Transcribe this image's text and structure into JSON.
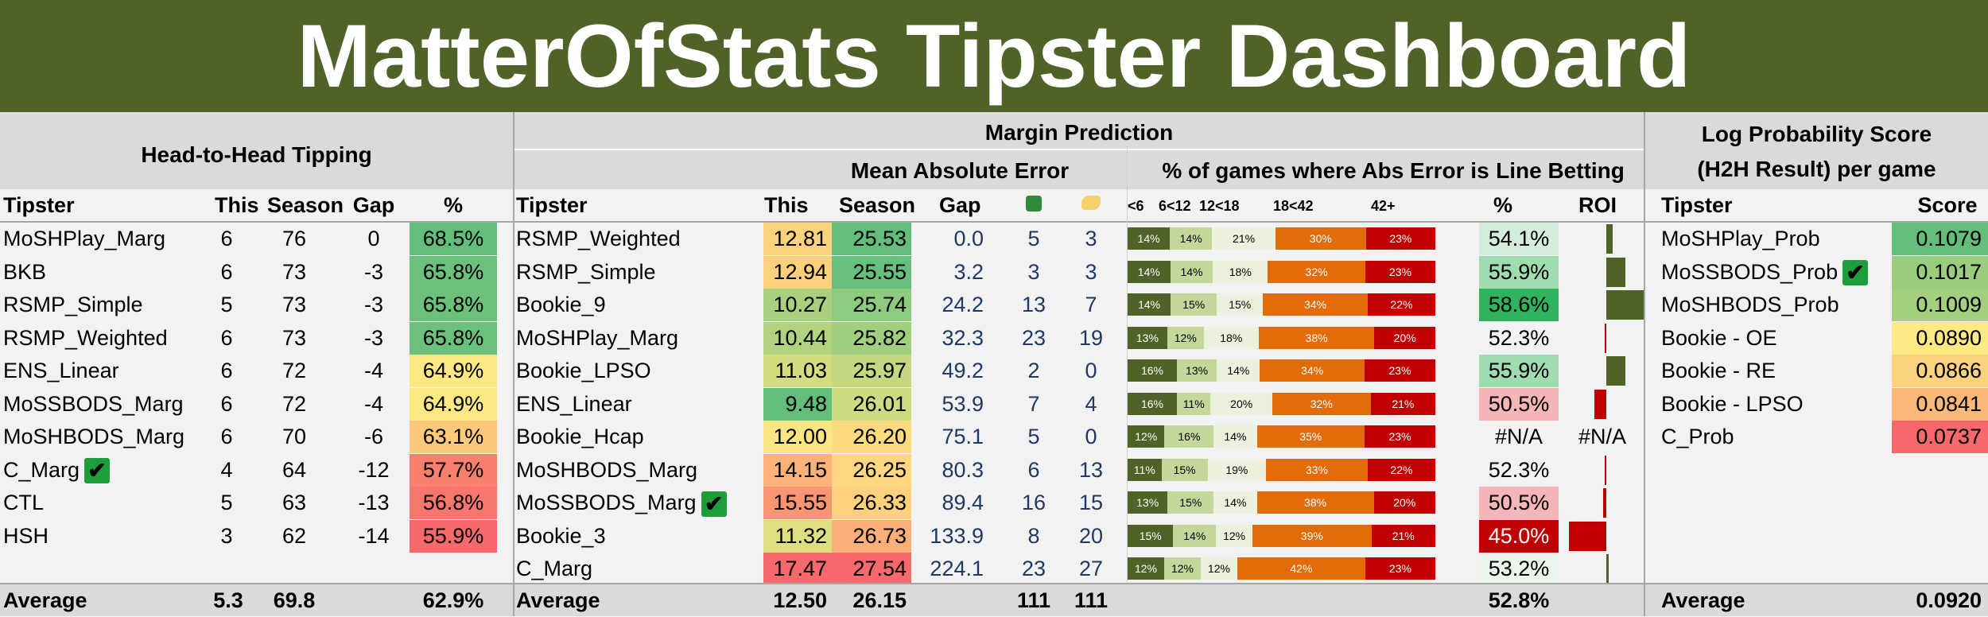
{
  "title": "MatterOfStats Tipster Dashboard",
  "h2h": {
    "section_title": "Head-to-Head Tipping",
    "headers": [
      "Tipster",
      "This",
      "Season",
      "Gap",
      "%"
    ],
    "rows": [
      {
        "name": "MoSHPlay_Marg",
        "this": "6",
        "season": "76",
        "gap": "0",
        "pct": "68.5%",
        "color": "#63be7b",
        "check": false
      },
      {
        "name": "BKB",
        "this": "6",
        "season": "73",
        "gap": "-3",
        "pct": "65.8%",
        "color": "#6bc17c",
        "check": false
      },
      {
        "name": "RSMP_Simple",
        "this": "5",
        "season": "73",
        "gap": "-3",
        "pct": "65.8%",
        "color": "#6bc17c",
        "check": false
      },
      {
        "name": "RSMP_Weighted",
        "this": "6",
        "season": "73",
        "gap": "-3",
        "pct": "65.8%",
        "color": "#6bc17c",
        "check": false
      },
      {
        "name": "ENS_Linear",
        "this": "6",
        "season": "72",
        "gap": "-4",
        "pct": "64.9%",
        "color": "#fde883",
        "check": false
      },
      {
        "name": "MoSSBODS_Marg",
        "this": "6",
        "season": "72",
        "gap": "-4",
        "pct": "64.9%",
        "color": "#fde883",
        "check": false
      },
      {
        "name": "MoSHBODS_Marg",
        "this": "6",
        "season": "70",
        "gap": "-6",
        "pct": "63.1%",
        "color": "#fcc97a",
        "check": false
      },
      {
        "name": "C_Marg",
        "this": "4",
        "season": "64",
        "gap": "-12",
        "pct": "57.7%",
        "color": "#f8806d",
        "check": true
      },
      {
        "name": "CTL",
        "this": "5",
        "season": "63",
        "gap": "-13",
        "pct": "56.8%",
        "color": "#f8766d",
        "check": false
      },
      {
        "name": "HSH",
        "this": "3",
        "season": "62",
        "gap": "-14",
        "pct": "55.9%",
        "color": "#f8696b",
        "check": false
      }
    ],
    "average": {
      "label": "Average",
      "this": "5.3",
      "season": "69.8",
      "pct": "62.9%"
    }
  },
  "margin": {
    "section_title": "Margin Prediction",
    "mae_title": "Mean Absolute Error",
    "pct_title": "% of games where Abs Error is",
    "line_title": "Line Betting",
    "headers": {
      "tipster": "Tipster",
      "this": "This",
      "season": "Season",
      "gap": "Gap",
      "pct": "%",
      "roi": "ROI"
    },
    "bucket_labels": [
      "<6",
      "6<12",
      "12<18",
      "18<42",
      "42+"
    ],
    "bucket_colors": [
      "#4f6228",
      "#c4d79b",
      "#ebf1de",
      "#e26b0a",
      "#c00000"
    ],
    "rows": [
      {
        "name": "RSMP_Weighted",
        "this": "12.81",
        "season": "25.53",
        "gap": "0.0",
        "g": "5",
        "f": "3",
        "this_color": "#fdd27f",
        "season_color": "#63be7b",
        "buckets": [
          "14%",
          "14%",
          "21%",
          "30%",
          "23%"
        ],
        "lb": "54.1%",
        "lb_color": "#d4edda",
        "roi": 0.18,
        "check": false
      },
      {
        "name": "RSMP_Simple",
        "this": "12.94",
        "season": "25.55",
        "gap": "3.2",
        "g": "3",
        "f": "3",
        "this_color": "#fdd07e",
        "season_color": "#66bf7c",
        "buckets": [
          "14%",
          "14%",
          "18%",
          "32%",
          "23%"
        ],
        "lb": "55.9%",
        "lb_color": "#9fdcb0",
        "roi": 0.5,
        "check": false
      },
      {
        "name": "Bookie_9",
        "this": "10.27",
        "season": "25.74",
        "gap": "24.2",
        "g": "13",
        "f": "7",
        "this_color": "#a8d07f",
        "season_color": "#8fcb7e",
        "buckets": [
          "14%",
          "15%",
          "15%",
          "34%",
          "22%"
        ],
        "lb": "58.6%",
        "lb_color": "#2fb35c",
        "roi": 1.0,
        "check": false
      },
      {
        "name": "MoSHPlay_Marg",
        "this": "10.44",
        "season": "25.82",
        "gap": "32.3",
        "g": "23",
        "f": "19",
        "this_color": "#b1d380",
        "season_color": "#9fcf7f",
        "buckets": [
          "13%",
          "12%",
          "18%",
          "38%",
          "20%"
        ],
        "lb": "52.3%",
        "lb_color": "#f2f2f2",
        "roi": -0.05,
        "check": false
      },
      {
        "name": "Bookie_LPSO",
        "this": "11.03",
        "season": "25.97",
        "gap": "49.2",
        "g": "2",
        "f": "0",
        "this_color": "#d2dc81",
        "season_color": "#c3d881",
        "buckets": [
          "16%",
          "13%",
          "14%",
          "34%",
          "23%"
        ],
        "lb": "55.9%",
        "lb_color": "#9fdcb0",
        "roi": 0.5,
        "check": false
      },
      {
        "name": "ENS_Linear",
        "this": "9.48",
        "season": "26.01",
        "gap": "53.9",
        "g": "7",
        "f": "4",
        "this_color": "#63be7b",
        "season_color": "#cddb82",
        "buckets": [
          "16%",
          "11%",
          "20%",
          "32%",
          "21%"
        ],
        "lb": "50.5%",
        "lb_color": "#f4b6b6",
        "roi": -0.32,
        "check": false
      },
      {
        "name": "Bookie_Hcap",
        "this": "12.00",
        "season": "26.20",
        "gap": "75.1",
        "g": "5",
        "f": "0",
        "this_color": "#fde583",
        "season_color": "#fedb81",
        "buckets": [
          "12%",
          "16%",
          "14%",
          "35%",
          "23%"
        ],
        "lb": "#N/A",
        "lb_color": "#f2f2f2",
        "roi": null,
        "roi_text": "#N/A",
        "check": false
      },
      {
        "name": "MoSHBODS_Marg",
        "this": "14.15",
        "season": "26.25",
        "gap": "80.3",
        "g": "6",
        "f": "13",
        "this_color": "#fcb279",
        "season_color": "#fdd880",
        "buckets": [
          "11%",
          "15%",
          "19%",
          "33%",
          "22%"
        ],
        "lb": "52.3%",
        "lb_color": "#f2f2f2",
        "roi": -0.05,
        "check": false
      },
      {
        "name": "MoSSBODS_Marg",
        "this": "15.55",
        "season": "26.33",
        "gap": "89.4",
        "g": "16",
        "f": "15",
        "this_color": "#fa9473",
        "season_color": "#fdd07e",
        "buckets": [
          "13%",
          "15%",
          "14%",
          "38%",
          "20%"
        ],
        "lb": "50.5%",
        "lb_color": "#f4b6b6",
        "roi": -0.08,
        "check": true
      },
      {
        "name": "Bookie_3",
        "this": "11.32",
        "season": "26.73",
        "gap": "133.9",
        "g": "8",
        "f": "20",
        "this_color": "#dfdf82",
        "season_color": "#fcaf78",
        "buckets": [
          "15%",
          "14%",
          "12%",
          "39%",
          "21%"
        ],
        "lb": "45.0%",
        "lb_color": "#c00000",
        "lb_text_color": "#ffffff",
        "roi": -1.0,
        "check": false
      },
      {
        "name": "C_Marg",
        "this": "17.47",
        "season": "27.54",
        "gap": "224.1",
        "g": "23",
        "f": "27",
        "this_color": "#f8696b",
        "season_color": "#f8696b",
        "buckets": [
          "12%",
          "12%",
          "12%",
          "42%",
          "23%"
        ],
        "lb": "53.2%",
        "lb_color": "#eaf5ec",
        "roi": 0.06,
        "check": false
      }
    ],
    "average": {
      "label": "Average",
      "this": "12.50",
      "season": "26.15",
      "g": "111",
      "f": "111",
      "lb": "52.8%"
    }
  },
  "logprob": {
    "title_line1": "Log Probability Score",
    "title_line2": "(H2H Result) per game",
    "headers": [
      "Tipster",
      "Score"
    ],
    "rows": [
      {
        "name": "MoSHPlay_Prob",
        "score": "0.1079",
        "color": "#63be7b",
        "check": false
      },
      {
        "name": "MoSSBODS_Prob",
        "score": "0.1017",
        "color": "#9bcd7e",
        "check": true
      },
      {
        "name": "MoSHBODS_Prob",
        "score": "0.1009",
        "color": "#a3d07f",
        "check": false
      },
      {
        "name": "Bookie - OE",
        "score": "0.0890",
        "color": "#fee983",
        "check": false
      },
      {
        "name": "Bookie - RE",
        "score": "0.0866",
        "color": "#fdd27f",
        "check": false
      },
      {
        "name": "Bookie - LPSO",
        "score": "0.0841",
        "color": "#fbb979",
        "check": false
      },
      {
        "name": "C_Prob",
        "score": "0.0737",
        "color": "#f8696b",
        "check": false
      }
    ],
    "average": {
      "label": "Average",
      "score": "0.0920"
    }
  }
}
